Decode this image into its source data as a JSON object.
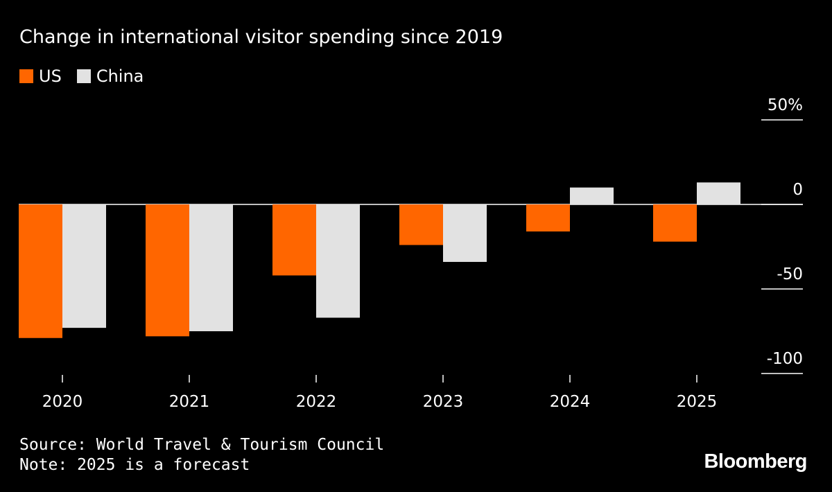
{
  "colors": {
    "us": "#ff6600",
    "china": "#e2e2e2",
    "background": "#000000",
    "text": "#ffffff"
  },
  "chart_data": {
    "type": "bar",
    "title": "Change in international visitor spending since 2019",
    "categories": [
      "2020",
      "2021",
      "2022",
      "2023",
      "2024",
      "2025"
    ],
    "series": [
      {
        "name": "US",
        "values": [
          -79,
          -78,
          -42,
          -24,
          -16,
          -22
        ]
      },
      {
        "name": "China",
        "values": [
          -73,
          -75,
          -67,
          -34,
          10,
          13
        ]
      }
    ],
    "y_ticks": [
      {
        "value": 50,
        "label": "50%"
      },
      {
        "value": 0,
        "label": "0"
      },
      {
        "value": -50,
        "label": "-50"
      },
      {
        "value": -100,
        "label": "-100"
      }
    ],
    "ylim": [
      -100,
      50
    ],
    "xlabel": "",
    "ylabel": "",
    "axis_position": "right"
  },
  "footer": {
    "source": "Source: World Travel & Tourism Council",
    "note": "Note: 2025 is a forecast"
  },
  "brand": "Bloomberg"
}
